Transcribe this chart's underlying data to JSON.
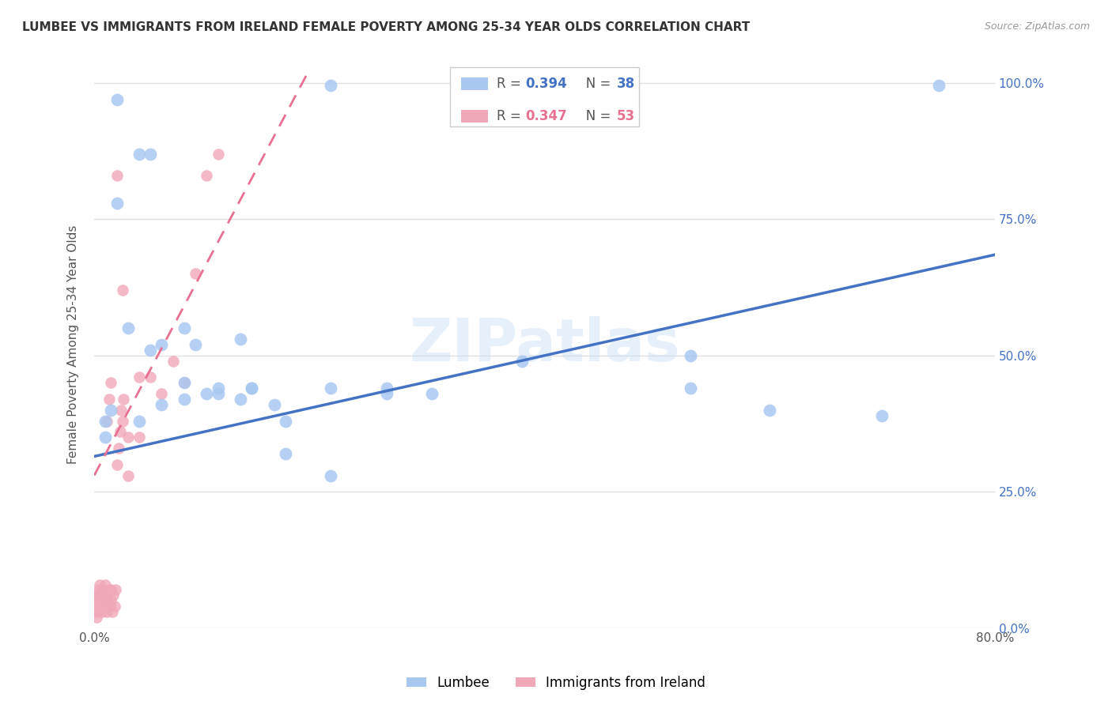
{
  "title": "LUMBEE VS IMMIGRANTS FROM IRELAND FEMALE POVERTY AMONG 25-34 YEAR OLDS CORRELATION CHART",
  "source": "Source: ZipAtlas.com",
  "ylabel": "Female Poverty Among 25-34 Year Olds",
  "xlim": [
    0,
    0.8
  ],
  "ylim": [
    0,
    1.04
  ],
  "xtick_positions": [
    0.0,
    0.1,
    0.2,
    0.3,
    0.4,
    0.5,
    0.6,
    0.7,
    0.8
  ],
  "xticklabels": [
    "0.0%",
    "",
    "",
    "",
    "",
    "",
    "",
    "",
    "80.0%"
  ],
  "ytick_positions": [
    0.0,
    0.25,
    0.5,
    0.75,
    1.0
  ],
  "yticklabels_right": [
    "0.0%",
    "25.0%",
    "50.0%",
    "75.0%",
    "100.0%"
  ],
  "blue_color": "#a8c8f0",
  "pink_color": "#f0a8b8",
  "blue_line_color": "#4472c4",
  "pink_line_color": "#e87090",
  "watermark": "ZIPatlas",
  "grid_color": "#e0e0e0",
  "blue_scatter_x": [
    0.02,
    0.04,
    0.05,
    0.02,
    0.03,
    0.08,
    0.05,
    0.09,
    0.13,
    0.06,
    0.14,
    0.08,
    0.16,
    0.14,
    0.21,
    0.26,
    0.26,
    0.3,
    0.38,
    0.53,
    0.53,
    0.6,
    0.7,
    0.01,
    0.01,
    0.015,
    0.04,
    0.06,
    0.08,
    0.1,
    0.11,
    0.11,
    0.13,
    0.17,
    0.17,
    0.21,
    0.75,
    0.21
  ],
  "blue_scatter_y": [
    0.97,
    0.87,
    0.87,
    0.78,
    0.55,
    0.55,
    0.51,
    0.52,
    0.53,
    0.52,
    0.44,
    0.45,
    0.41,
    0.44,
    0.44,
    0.43,
    0.44,
    0.43,
    0.49,
    0.5,
    0.44,
    0.4,
    0.39,
    0.35,
    0.38,
    0.4,
    0.38,
    0.41,
    0.42,
    0.43,
    0.44,
    0.43,
    0.42,
    0.38,
    0.32,
    0.28,
    0.995,
    0.995
  ],
  "pink_scatter_x": [
    0.001,
    0.001,
    0.002,
    0.002,
    0.003,
    0.003,
    0.004,
    0.004,
    0.005,
    0.005,
    0.006,
    0.006,
    0.007,
    0.007,
    0.008,
    0.008,
    0.009,
    0.009,
    0.01,
    0.01,
    0.011,
    0.011,
    0.012,
    0.013,
    0.014,
    0.015,
    0.015,
    0.016,
    0.017,
    0.018,
    0.019,
    0.02,
    0.022,
    0.023,
    0.024,
    0.025,
    0.026,
    0.03,
    0.03,
    0.04,
    0.04,
    0.05,
    0.06,
    0.07,
    0.08,
    0.09,
    0.1,
    0.11,
    0.02,
    0.025,
    0.015,
    0.013,
    0.011
  ],
  "pink_scatter_y": [
    0.06,
    0.03,
    0.05,
    0.02,
    0.06,
    0.03,
    0.04,
    0.07,
    0.05,
    0.08,
    0.04,
    0.06,
    0.03,
    0.05,
    0.04,
    0.07,
    0.05,
    0.06,
    0.04,
    0.08,
    0.03,
    0.06,
    0.05,
    0.07,
    0.04,
    0.05,
    0.07,
    0.03,
    0.06,
    0.04,
    0.07,
    0.3,
    0.33,
    0.36,
    0.4,
    0.38,
    0.42,
    0.35,
    0.28,
    0.46,
    0.35,
    0.46,
    0.43,
    0.49,
    0.45,
    0.65,
    0.83,
    0.87,
    0.83,
    0.62,
    0.45,
    0.42,
    0.38
  ],
  "blue_line_x": [
    0.0,
    0.8
  ],
  "blue_line_y": [
    0.315,
    0.685
  ],
  "pink_line_x": [
    0.0,
    0.19
  ],
  "pink_line_y": [
    0.28,
    1.02
  ]
}
